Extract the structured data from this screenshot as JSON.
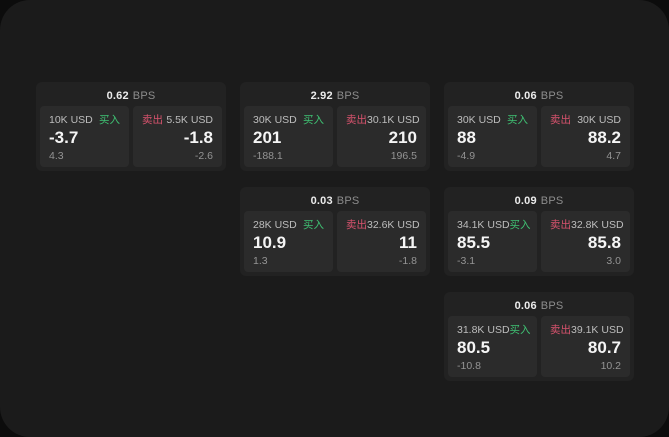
{
  "colors": {
    "page_bg": "#0c0c0c",
    "panel_bg": "#1b1b1b",
    "card_bg": "#222222",
    "tile_bg": "#2b2b2b",
    "buy_green": "#3fc173",
    "sell_red": "#d9536e"
  },
  "labels": {
    "bps": "BPS",
    "buy": "买入",
    "sell": "卖出"
  },
  "cards": [
    {
      "bps": "0.62",
      "buy": {
        "amount": "10K USD",
        "price": "-3.7",
        "delta": "4.3"
      },
      "sell": {
        "amount": "5.5K USD",
        "price": "-1.8",
        "delta": "-2.6"
      }
    },
    {
      "bps": "2.92",
      "buy": {
        "amount": "30K USD",
        "price": "201",
        "delta": "-188.1"
      },
      "sell": {
        "amount": "30.1K USD",
        "price": "210",
        "delta": "196.5"
      }
    },
    {
      "bps": "0.06",
      "buy": {
        "amount": "30K USD",
        "price": "88",
        "delta": "-4.9"
      },
      "sell": {
        "amount": "30K USD",
        "price": "88.2",
        "delta": "4.7"
      }
    },
    {
      "bps": "0.03",
      "buy": {
        "amount": "28K USD",
        "price": "10.9",
        "delta": "1.3"
      },
      "sell": {
        "amount": "32.6K USD",
        "price": "11",
        "delta": "-1.8"
      }
    },
    {
      "bps": "0.09",
      "buy": {
        "amount": "34.1K USD",
        "price": "85.5",
        "delta": "-3.1"
      },
      "sell": {
        "amount": "32.8K USD",
        "price": "85.8",
        "delta": "3.0"
      }
    },
    {
      "bps": "0.06",
      "buy": {
        "amount": "31.8K USD",
        "price": "80.5",
        "delta": "-10.8"
      },
      "sell": {
        "amount": "39.1K USD",
        "price": "80.7",
        "delta": "10.2"
      }
    }
  ]
}
